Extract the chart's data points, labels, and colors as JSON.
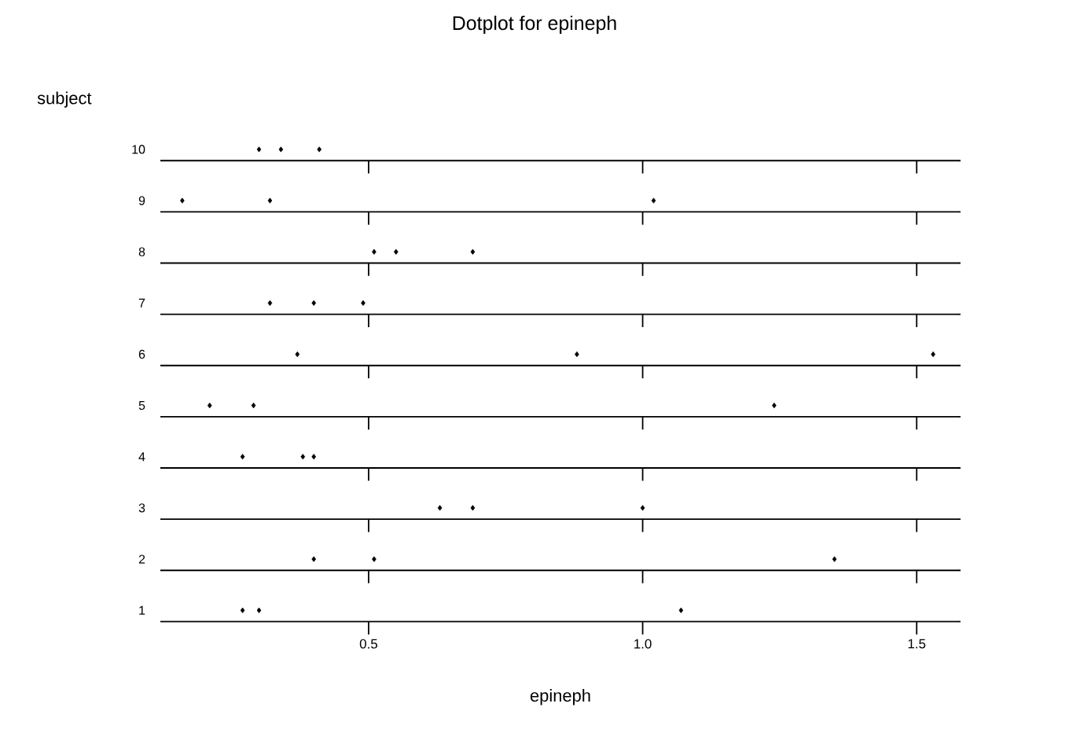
{
  "chart_data": {
    "type": "scatter",
    "title": "Dotplot for epineph",
    "xlabel": "epineph",
    "ylabel": "subject",
    "orientation": "horizontal",
    "categories": [
      "10",
      "9",
      "8",
      "7",
      "6",
      "5",
      "4",
      "3",
      "2",
      "1"
    ],
    "series": [
      {
        "color": "#000000",
        "values": [
          0.3,
          0.16,
          0.51,
          0.32,
          0.37,
          0.21,
          0.27,
          0.63,
          0.4,
          0.27
        ]
      },
      {
        "color": "#000000",
        "values": [
          0.34,
          0.32,
          0.55,
          0.4,
          0.88,
          0.29,
          0.38,
          0.69,
          0.51,
          0.3
        ]
      },
      {
        "color": "#000000",
        "values": [
          0.41,
          1.02,
          0.69,
          0.49,
          1.53,
          1.24,
          0.4,
          1.0,
          1.35,
          1.07
        ]
      }
    ],
    "xlim": [
      0.12,
      1.58
    ],
    "xticks": [
      0.5,
      {
        "value": 1,
        "label": "1.0"
      },
      1.5
    ],
    "grid": "y",
    "marker": "diamond"
  }
}
